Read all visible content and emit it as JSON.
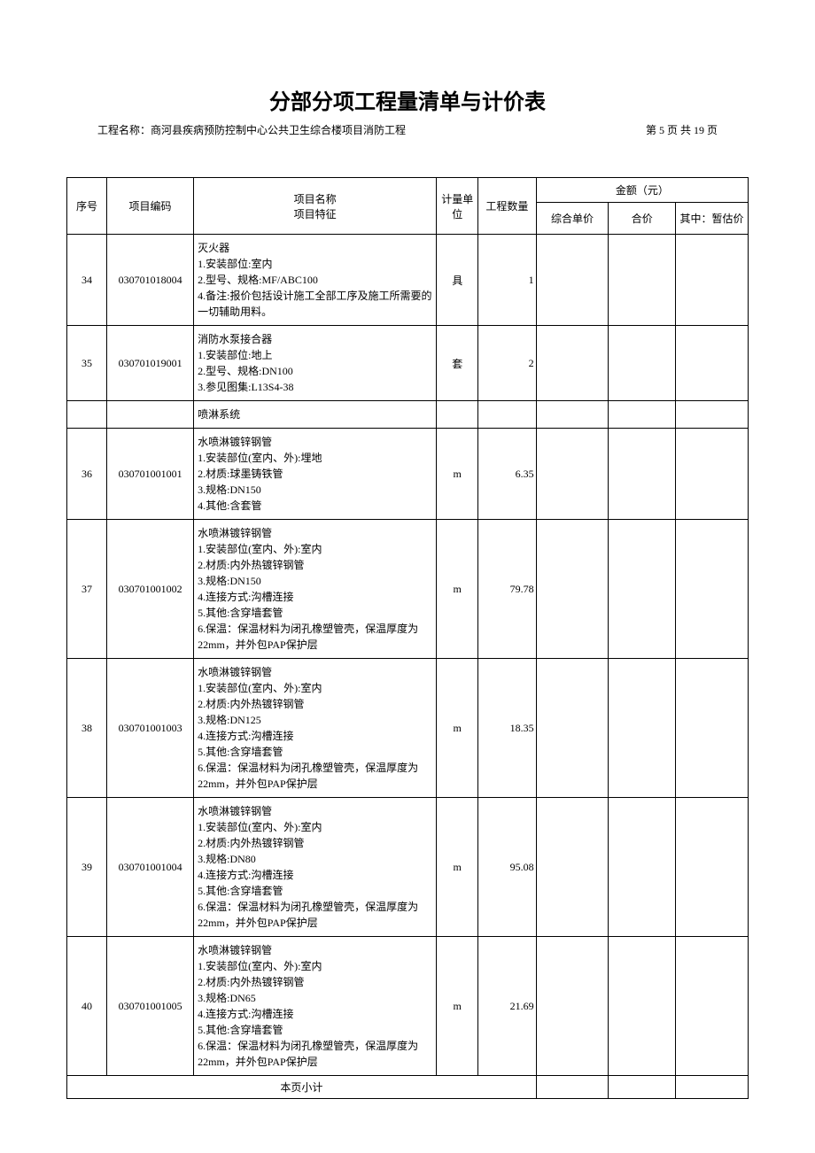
{
  "title": "分部分项工程量清单与计价表",
  "project_label": "工程名称：",
  "project_name": "商河县疾病预防控制中心公共卫生综合楼项目消防工程",
  "page_info": "第 5 页  共 19 页",
  "headers": {
    "seq": "序号",
    "code": "项目编码",
    "item": "项目名称\n项目特征",
    "unit": "计量单位",
    "qty": "工程数量",
    "amount": "金额（元）",
    "unit_price": "综合单价",
    "total": "合价",
    "provisional": "其中：暂估价"
  },
  "rows": [
    {
      "seq": "34",
      "code": "030701018004",
      "item": "灭火器\n1.安装部位:室内\n2.型号、规格:MF/ABC100\n4.备注:报价包括设计施工全部工序及施工所需要的一切辅助用料。",
      "unit": "具",
      "qty": "1",
      "unit_price": "",
      "total": "",
      "provisional": ""
    },
    {
      "seq": "35",
      "code": "030701019001",
      "item": "消防水泵接合器\n1.安装部位:地上\n2.型号、规格:DN100\n3.参见图集:L13S4-38",
      "unit": "套",
      "qty": "2",
      "unit_price": "",
      "total": "",
      "provisional": ""
    },
    {
      "seq": "",
      "code": "",
      "item": "喷淋系统",
      "unit": "",
      "qty": "",
      "unit_price": "",
      "total": "",
      "provisional": ""
    },
    {
      "seq": "36",
      "code": "030701001001",
      "item": "水喷淋镀锌钢管\n1.安装部位(室内、外):埋地\n2.材质:球墨铸铁管\n3.规格:DN150\n4.其他:含套管",
      "unit": "m",
      "qty": "6.35",
      "unit_price": "",
      "total": "",
      "provisional": ""
    },
    {
      "seq": "37",
      "code": "030701001002",
      "item": "水喷淋镀锌钢管\n1.安装部位(室内、外):室内\n2.材质:内外热镀锌钢管\n3.规格:DN150\n4.连接方式:沟槽连接\n5.其他:含穿墙套管\n6.保温：保温材料为闭孔橡塑管壳，保温厚度为22mm，并外包PAP保护层",
      "unit": "m",
      "qty": "79.78",
      "unit_price": "",
      "total": "",
      "provisional": ""
    },
    {
      "seq": "38",
      "code": "030701001003",
      "item": "水喷淋镀锌钢管\n1.安装部位(室内、外):室内\n2.材质:内外热镀锌钢管\n3.规格:DN125\n4.连接方式:沟槽连接\n5.其他:含穿墙套管\n6.保温：保温材料为闭孔橡塑管壳，保温厚度为22mm，并外包PAP保护层",
      "unit": "m",
      "qty": "18.35",
      "unit_price": "",
      "total": "",
      "provisional": ""
    },
    {
      "seq": "39",
      "code": "030701001004",
      "item": "水喷淋镀锌钢管\n1.安装部位(室内、外):室内\n2.材质:内外热镀锌钢管\n3.规格:DN80\n4.连接方式:沟槽连接\n5.其他:含穿墙套管\n6.保温：保温材料为闭孔橡塑管壳，保温厚度为22mm，并外包PAP保护层",
      "unit": "m",
      "qty": "95.08",
      "unit_price": "",
      "total": "",
      "provisional": ""
    },
    {
      "seq": "40",
      "code": "030701001005",
      "item": "水喷淋镀锌钢管\n1.安装部位(室内、外):室内\n2.材质:内外热镀锌钢管\n3.规格:DN65\n4.连接方式:沟槽连接\n5.其他:含穿墙套管\n6.保温：保温材料为闭孔橡塑管壳，保温厚度为22mm，并外包PAP保护层",
      "unit": "m",
      "qty": "21.69",
      "unit_price": "",
      "total": "",
      "provisional": ""
    }
  ],
  "subtotal_label": "本页小计"
}
